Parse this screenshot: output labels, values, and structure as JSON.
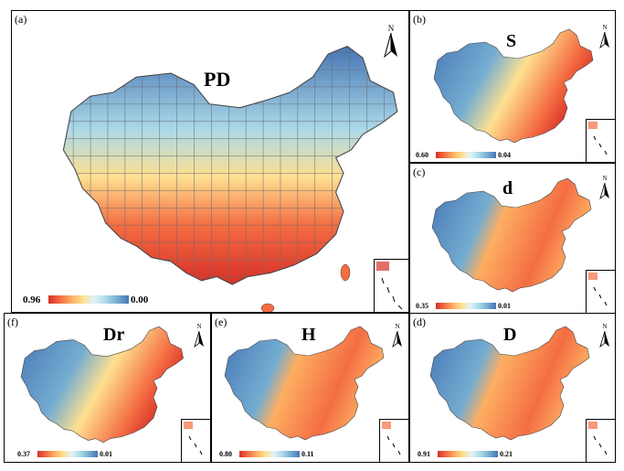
{
  "figure": {
    "panels": [
      {
        "id": "a",
        "label": "(a)",
        "title": "PD",
        "legend_min": "0.96",
        "legend_max": "0.00"
      },
      {
        "id": "b",
        "label": "(b)",
        "title": "S",
        "legend_min": "0.60",
        "legend_max": "0.04"
      },
      {
        "id": "c",
        "label": "(c)",
        "title": "d",
        "legend_min": "0.35",
        "legend_max": "0.01"
      },
      {
        "id": "f",
        "label": "(f)",
        "title": "Dr",
        "legend_min": "0.37",
        "legend_max": "0.01"
      },
      {
        "id": "e",
        "label": "(e)",
        "title": "H",
        "legend_min": "0.80",
        "legend_max": "0.11"
      },
      {
        "id": "d",
        "label": "(d)",
        "title": "D",
        "legend_min": "0.91",
        "legend_max": "0.21"
      }
    ],
    "north_label": "N",
    "colors": {
      "high": "#d73027",
      "mid": "#fee090",
      "low": "#4575b4",
      "border": "#000000"
    }
  }
}
